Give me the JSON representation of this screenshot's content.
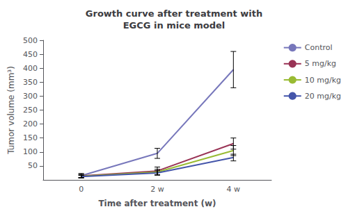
{
  "chart_data": {
    "type": "line",
    "title": "Growth curve after treatment with\nEGCG in mice model",
    "xlabel": "Time after treatment (w)",
    "ylabel": "Tumor volume (mm³)",
    "categories": [
      "0",
      "2 w",
      "4 w"
    ],
    "ylim": [
      0,
      500
    ],
    "yticks": [
      50,
      100,
      150,
      200,
      250,
      300,
      350,
      400,
      450,
      500
    ],
    "grid": false,
    "legend": "right",
    "marker": "none",
    "series": [
      {
        "name": "Control",
        "color": "#7777bb",
        "values": [
          15,
          95,
          395
        ],
        "yerr": [
          8,
          18,
          65
        ]
      },
      {
        "name": "5 mg/kg",
        "color": "#993355",
        "values": [
          14,
          32,
          130
        ],
        "yerr": [
          6,
          14,
          20
        ]
      },
      {
        "name": "10 mg/kg",
        "color": "#99bb33",
        "values": [
          13,
          28,
          105
        ],
        "yerr": [
          5,
          10,
          18
        ]
      },
      {
        "name": "20 mg/kg",
        "color": "#4455aa",
        "values": [
          12,
          25,
          80
        ],
        "yerr": [
          4,
          8,
          12
        ]
      }
    ]
  }
}
